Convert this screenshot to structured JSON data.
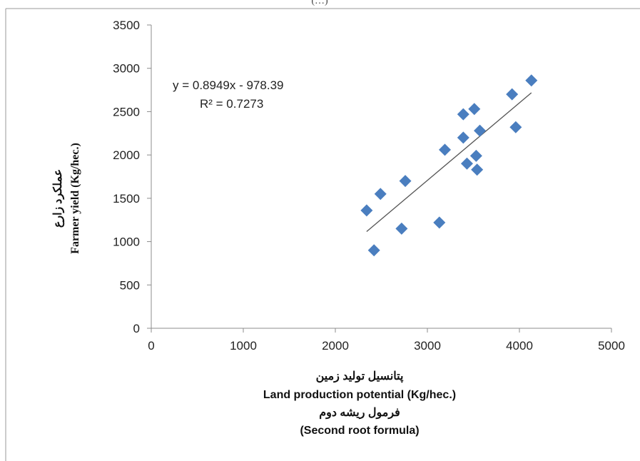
{
  "figure_label_partial": "(…)",
  "chart_data": {
    "type": "scatter",
    "title": "",
    "xlabel_lines": [
      "پتانسیل تولید زمین",
      "Land production potential (Kg/hec.)",
      "فرمول ریشه دوم",
      "(Second root formula)"
    ],
    "ylabel_lines": [
      "عملکرد زارع",
      "Farmer yield (Kg/hec.)"
    ],
    "xlim": [
      0,
      5000
    ],
    "ylim": [
      0,
      3500
    ],
    "x_ticks": [
      0,
      1000,
      2000,
      3000,
      4000,
      5000
    ],
    "y_ticks": [
      0,
      500,
      1000,
      1500,
      2000,
      2500,
      3000,
      3500
    ],
    "grid": false,
    "marker": "diamond",
    "marker_color": "#4a7ebf",
    "series": [
      {
        "points": [
          [
            2340,
            1360
          ],
          [
            2420,
            900
          ],
          [
            2490,
            1550
          ],
          [
            2720,
            1150
          ],
          [
            2760,
            1700
          ],
          [
            3130,
            1220
          ],
          [
            3190,
            2060
          ],
          [
            3390,
            2470
          ],
          [
            3390,
            2200
          ],
          [
            3430,
            1900
          ],
          [
            3510,
            2530
          ],
          [
            3530,
            1990
          ],
          [
            3540,
            1830
          ],
          [
            3570,
            2280
          ],
          [
            3920,
            2700
          ],
          [
            3960,
            2320
          ],
          [
            4130,
            2860
          ]
        ]
      }
    ],
    "trendline": {
      "slope": 0.8949,
      "intercept": -978.39,
      "x_range": [
        2340,
        4130
      ],
      "equation_label": "y = 0.8949x - 978.39",
      "r2_label": "R² = 0.7273",
      "color": "#555555"
    }
  }
}
